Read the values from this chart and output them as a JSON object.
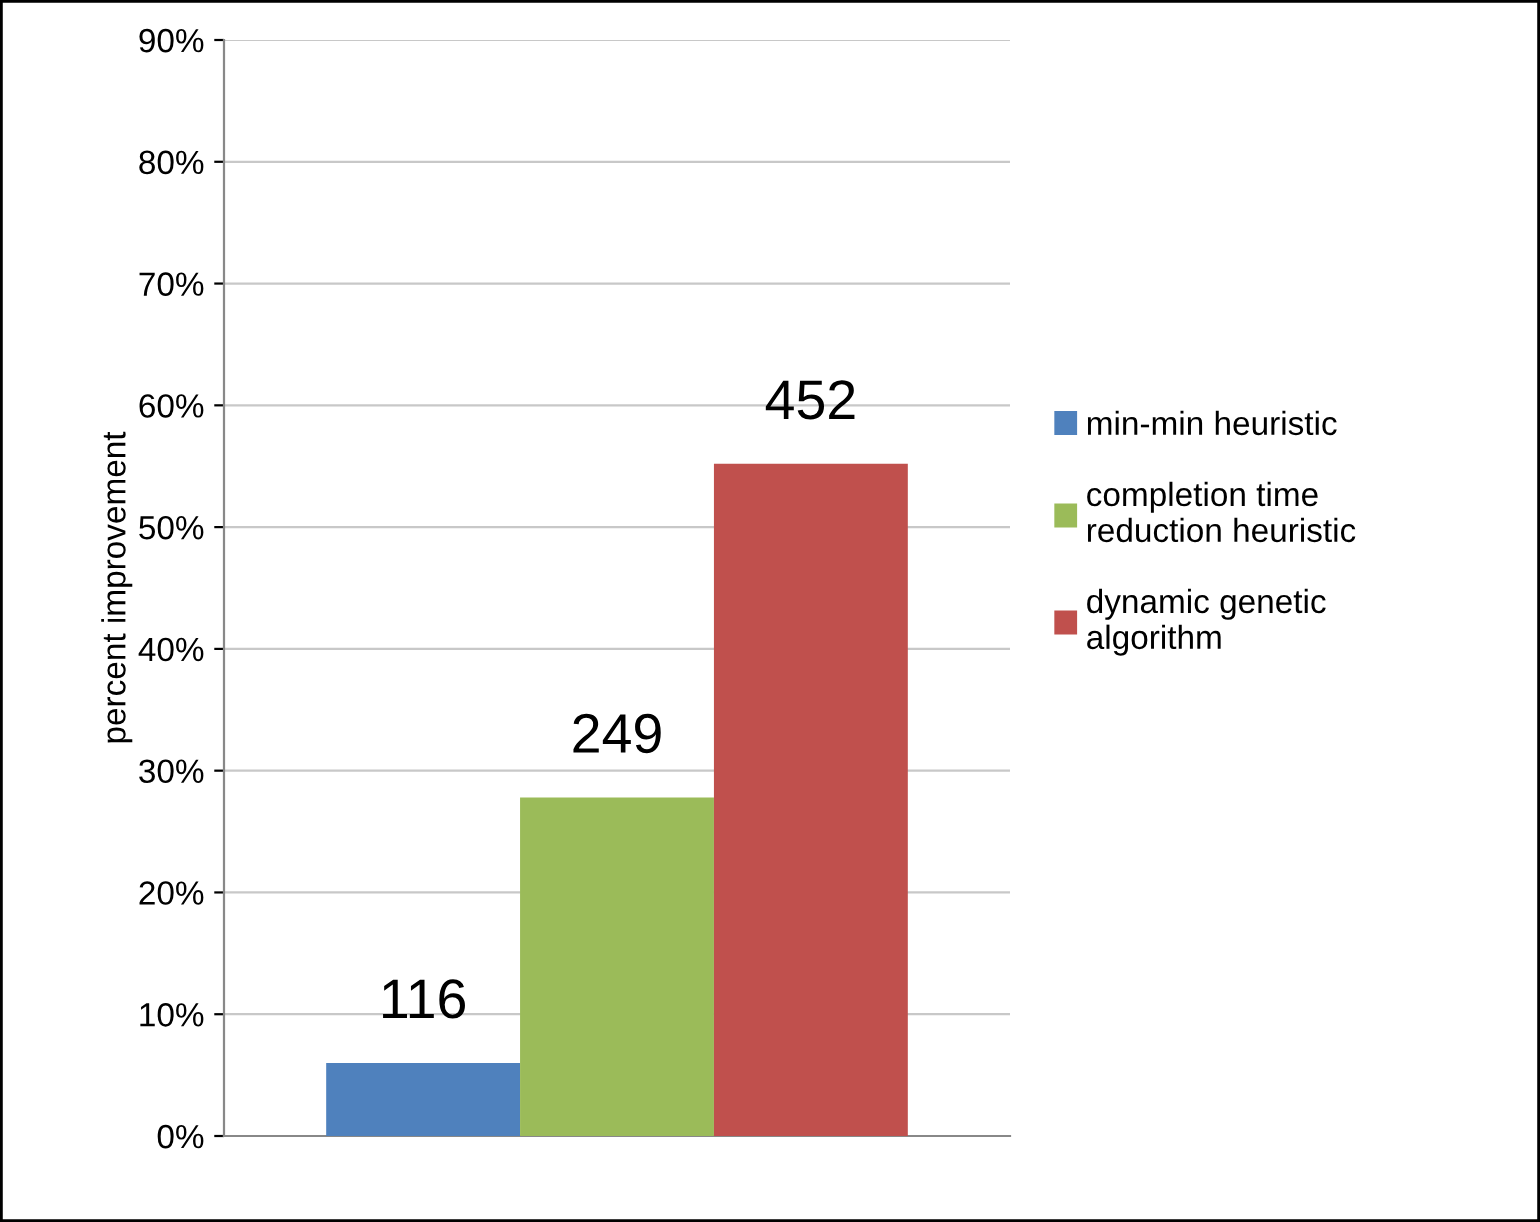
{
  "chart_data": {
    "type": "bar",
    "ylabel": "percent improvement",
    "categories": [
      null
    ],
    "series": [
      {
        "name": "min-min heuristic",
        "color": "#4f81bd",
        "values": [
          6
        ]
      },
      {
        "name": "completion time\nreduction heuristic",
        "color": "#9bbb59",
        "values": [
          27.8
        ]
      },
      {
        "name": "dynamic genetic\nalgorithm",
        "color": "#c0504d",
        "values": [
          55.2
        ]
      }
    ],
    "annotations": [
      {
        "text": "116",
        "y": 6
      },
      {
        "text": "249",
        "y": 27.8
      },
      {
        "text": "452",
        "y": 55.2
      }
    ],
    "ylim": [
      0,
      90
    ],
    "yticks": [
      {
        "value": 0,
        "label": "0%"
      },
      {
        "value": 10,
        "label": "10%"
      },
      {
        "value": 20,
        "label": "20%"
      },
      {
        "value": 30,
        "label": "30%"
      },
      {
        "value": 40,
        "label": "40%"
      },
      {
        "value": 50,
        "label": "50%"
      },
      {
        "value": 60,
        "label": "60%"
      },
      {
        "value": 70,
        "label": "70%"
      },
      {
        "value": 80,
        "label": "80%"
      },
      {
        "value": 90,
        "label": "90%"
      }
    ],
    "grid": "y",
    "legend": "right"
  }
}
